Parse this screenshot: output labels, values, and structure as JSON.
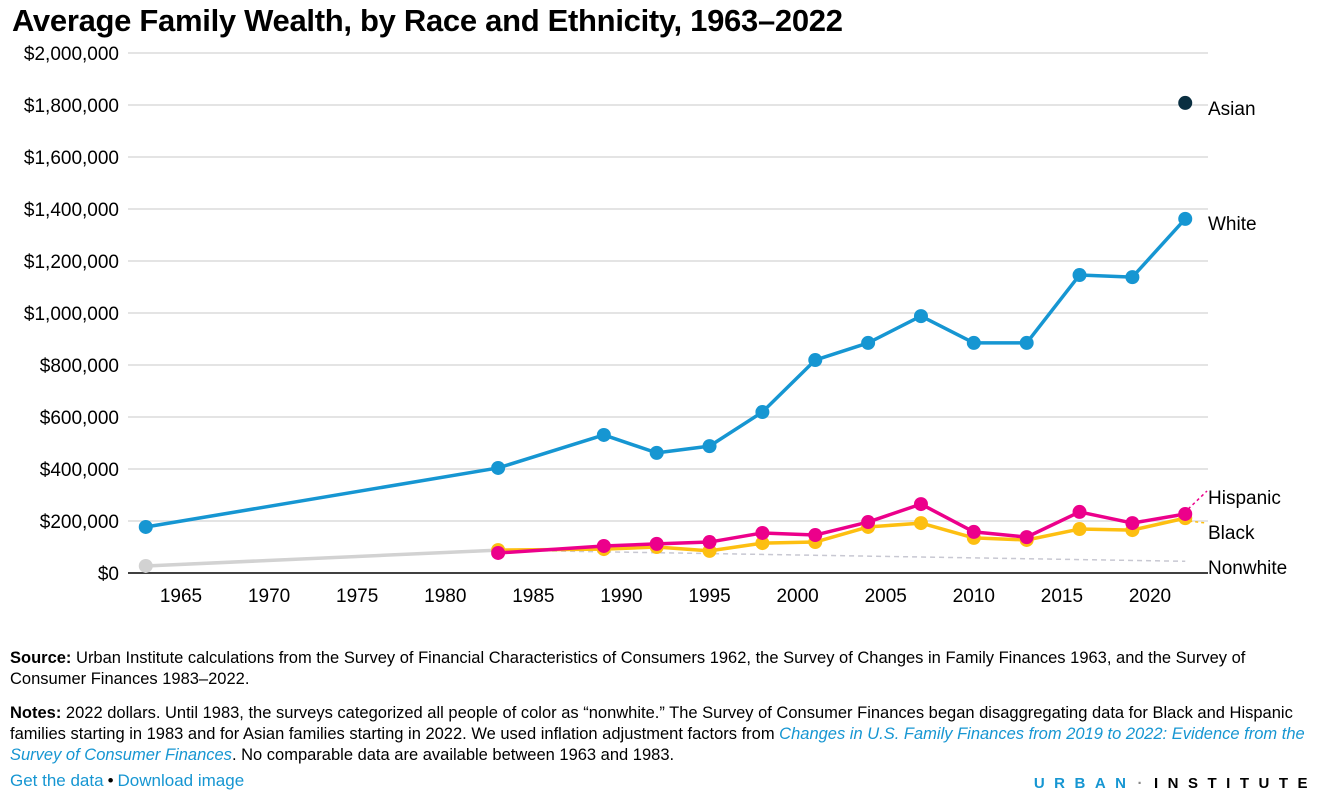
{
  "title": "Average Family Wealth, by Race and Ethnicity, 1963–2022",
  "chart_data": {
    "type": "line",
    "title": "Average Family Wealth, by Race and Ethnicity, 1963–2022",
    "xlabel": "",
    "ylabel": "",
    "xlim": [
      1962,
      2024
    ],
    "ylim": [
      0,
      2000000
    ],
    "grid": true,
    "legend": "direct-labels-right",
    "x_ticks": [
      1965,
      1970,
      1975,
      1980,
      1985,
      1990,
      1995,
      2000,
      2005,
      2010,
      2015,
      2020
    ],
    "y_ticks": [
      0,
      200000,
      400000,
      600000,
      800000,
      1000000,
      1200000,
      1400000,
      1600000,
      1800000,
      2000000
    ],
    "y_tick_labels": [
      "$0",
      "$200,000",
      "$400,000",
      "$600,000",
      "$800,000",
      "$1,000,000",
      "$1,200,000",
      "$1,400,000",
      "$1,600,000",
      "$1,800,000",
      "$2,000,000"
    ],
    "series": [
      {
        "name": "White",
        "color": "#1696d2",
        "x": [
          1963,
          1983,
          1989,
          1992,
          1995,
          1998,
          2001,
          2004,
          2007,
          2010,
          2013,
          2016,
          2019,
          2022
        ],
        "values": [
          177000,
          404000,
          531000,
          462000,
          488000,
          619000,
          819000,
          885000,
          988000,
          885000,
          885000,
          1146000,
          1138000,
          1362000
        ]
      },
      {
        "name": "Nonwhite",
        "color": "#d2d2d2",
        "x": [
          1963,
          1983
        ],
        "values": [
          27000,
          88000
        ]
      },
      {
        "name": "Black",
        "color": "#fdbf11",
        "x": [
          1983,
          1989,
          1992,
          1995,
          1998,
          2001,
          2004,
          2007,
          2010,
          2013,
          2016,
          2019,
          2022
        ],
        "values": [
          88000,
          92000,
          100000,
          85000,
          115000,
          119000,
          177000,
          192000,
          135000,
          127000,
          169000,
          165000,
          211000
        ]
      },
      {
        "name": "Hispanic",
        "color": "#ec008b",
        "x": [
          1983,
          1989,
          1992,
          1995,
          1998,
          2001,
          2004,
          2007,
          2010,
          2013,
          2016,
          2019,
          2022
        ],
        "values": [
          77000,
          104000,
          112000,
          119000,
          154000,
          146000,
          196000,
          265000,
          158000,
          138000,
          235000,
          192000,
          227000
        ]
      },
      {
        "name": "Asian",
        "color": "#0a2f41",
        "x": [
          2022
        ],
        "values": [
          1808000
        ]
      }
    ],
    "reference_line": {
      "name": "Nonwhite (dashed continuation)",
      "color": "#c8c8d2",
      "x": [
        1983,
        2022
      ],
      "values": [
        88000,
        45000
      ]
    },
    "series_labels": [
      "Asian",
      "White",
      "Hispanic",
      "Black",
      "Nonwhite"
    ]
  },
  "footer": {
    "source_label": "Source:",
    "source_text": " Urban Institute calculations from the Survey of Financial Characteristics of Consumers 1962, the Survey of Changes in Family Finances 1963, and the Survey of Consumer Finances 1983–2022.",
    "notes_label": "Notes:",
    "notes_text_1": " 2022 dollars. Until 1983, the surveys categorized all people of color as “nonwhite.” The Survey of Consumer Finances began disaggregating data for Black and Hispanic families starting in 1983 and for Asian families starting in 2022. We used inflation adjustment factors from ",
    "notes_link": "Changes in U.S. Family Finances from 2019 to 2022: Evidence from the Survey of Consumer Finances",
    "notes_text_2": ". No comparable data are available between 1963 and 1983.",
    "get_data": "Get the data",
    "separator": "•",
    "download_image": "Download image",
    "logo_urban": "URBAN",
    "logo_sep": "·",
    "logo_institute": "INSTITUTE"
  }
}
